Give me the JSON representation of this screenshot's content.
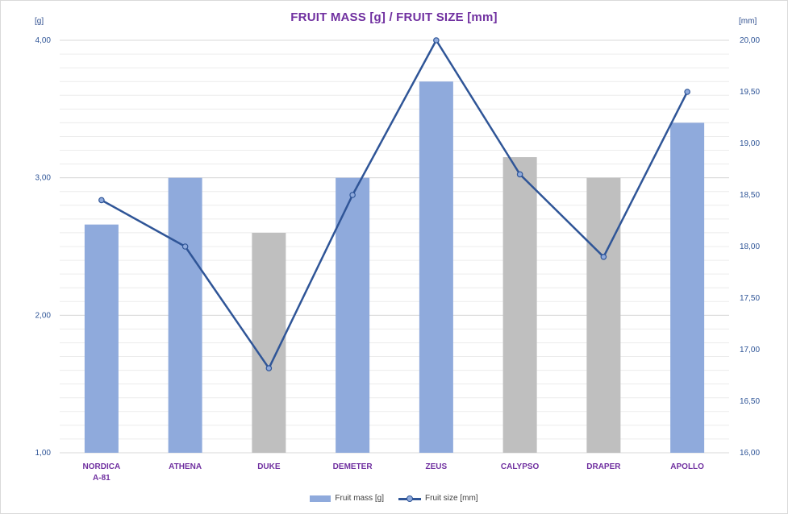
{
  "chart_data": {
    "type": "bar",
    "title": "FRUIT MASS [g] / FRUIT SIZE [mm]",
    "y_unit_left": "[g]",
    "y_unit_right": "[mm]",
    "categories": [
      "NORDICA A-81",
      "ATHENA",
      "DUKE",
      "DEMETER",
      "ZEUS",
      "CALYPSO",
      "DRAPER",
      "APOLLO"
    ],
    "category_label_lines": [
      [
        "NORDICA",
        "A-81"
      ],
      [
        "ATHENA"
      ],
      [
        "DUKE"
      ],
      [
        "DEMETER"
      ],
      [
        "ZEUS"
      ],
      [
        "CALYPSO"
      ],
      [
        "DRAPER"
      ],
      [
        "APOLLO"
      ]
    ],
    "series": [
      {
        "name": "Fruit mass [g]",
        "type": "bar",
        "axis": "left",
        "values": [
          2.66,
          3.0,
          2.6,
          3.0,
          3.7,
          3.15,
          3.0,
          3.4
        ],
        "colors": [
          "#8faadc",
          "#8faadc",
          "#bfbfbf",
          "#8faadc",
          "#8faadc",
          "#bfbfbf",
          "#bfbfbf",
          "#8faadc"
        ]
      },
      {
        "name": "Fruit size [mm]",
        "type": "line",
        "axis": "right",
        "values": [
          18.45,
          18.0,
          16.82,
          18.5,
          20.0,
          18.7,
          17.9,
          19.5
        ],
        "color": "#2f5597",
        "marker_fill": "#8faadc"
      }
    ],
    "y_left": {
      "min": 1.0,
      "max": 4.0,
      "ticks": [
        "1,00",
        "2,00",
        "3,00",
        "4,00"
      ],
      "tick_values": [
        1,
        2,
        3,
        4
      ]
    },
    "y_right": {
      "min": 16.0,
      "max": 20.0,
      "ticks": [
        "16,00",
        "16,50",
        "17,00",
        "17,50",
        "18,00",
        "18,50",
        "19,00",
        "19,50",
        "20,00"
      ],
      "tick_values": [
        16,
        16.5,
        17,
        17.5,
        18,
        18.5,
        19,
        19.5,
        20
      ]
    },
    "legend": {
      "position": "bottom",
      "items": [
        {
          "label": "Fruit mass [g]",
          "swatch_color": "#8faadc"
        },
        {
          "label": "Fruit size [mm]",
          "swatch_color": "#2f5597"
        }
      ]
    },
    "grid": true,
    "colors": {
      "title": "#7030a0",
      "category_labels": "#7030a0",
      "axis_ticks": "#2f5597",
      "gridline": "#d9d9d9"
    }
  }
}
